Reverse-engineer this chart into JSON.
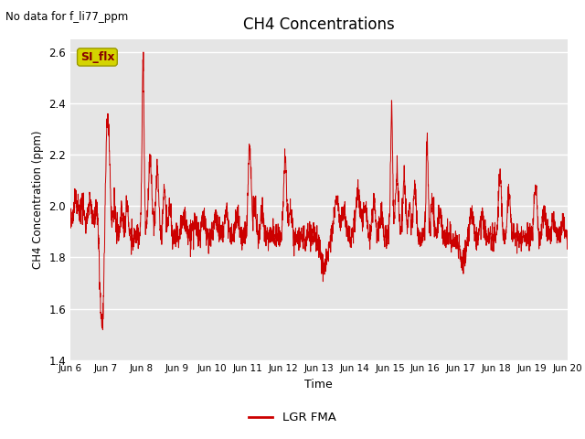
{
  "title": "CH4 Concentrations",
  "xlabel": "Time",
  "ylabel": "CH4 Concentration (ppm)",
  "ylim": [
    1.4,
    2.65
  ],
  "yticks": [
    1.4,
    1.6,
    1.8,
    2.0,
    2.2,
    2.4,
    2.6
  ],
  "xtick_labels": [
    "Jun 6",
    "Jun 7",
    "Jun 8",
    "Jun 9",
    "Jun 10",
    "Jun 11",
    "Jun 12",
    "Jun 13",
    "Jun 14",
    "Jun 15",
    "Jun 16",
    "Jun 17",
    "Jun 18",
    "Jun 19",
    "Jun 20"
  ],
  "line_color": "#cc0000",
  "bg_color": "#e5e5e5",
  "fig_bg": "#ffffff",
  "legend_label": "LGR FMA",
  "note_text": "No data for f_li77_ppm",
  "si_flx_label": "SI_flx",
  "si_flx_color": "#d4d400",
  "si_flx_text_color": "#880000"
}
